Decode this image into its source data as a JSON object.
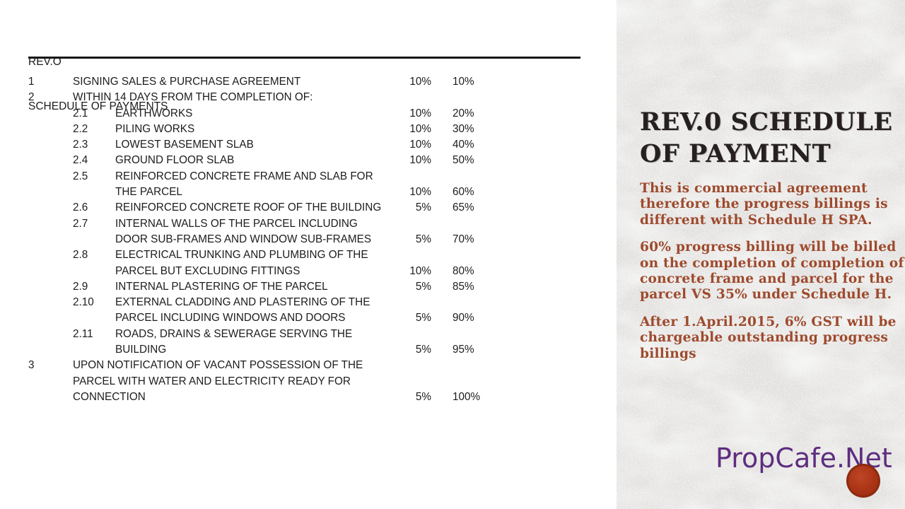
{
  "document": {
    "header": {
      "line1": "REV.O",
      "line2": "SCHEDULE OF PAYMENTS"
    },
    "rows": [
      {
        "no": "1",
        "level": "main",
        "lines": [
          "SIGNING SALES & PURCHASE AGREEMENT"
        ],
        "progress": "10%",
        "cumulative": "10%"
      },
      {
        "no": "2",
        "level": "main",
        "lines": [
          "WITHIN 14 DAYS FROM THE COMPLETION OF:"
        ],
        "progress": "",
        "cumulative": ""
      },
      {
        "no": "2.1",
        "level": "sub",
        "lines": [
          "EARTHWORKS"
        ],
        "progress": "10%",
        "cumulative": "20%"
      },
      {
        "no": "2.2",
        "level": "sub",
        "lines": [
          "PILING WORKS"
        ],
        "progress": "10%",
        "cumulative": "30%"
      },
      {
        "no": "2.3",
        "level": "sub",
        "lines": [
          "LOWEST BASEMENT SLAB"
        ],
        "progress": "10%",
        "cumulative": "40%"
      },
      {
        "no": "2.4",
        "level": "sub",
        "lines": [
          "GROUND FLOOR SLAB"
        ],
        "progress": "10%",
        "cumulative": "50%"
      },
      {
        "no": "2.5",
        "level": "sub",
        "lines": [
          "REINFORCED CONCRETE FRAME AND SLAB FOR",
          "THE PARCEL"
        ],
        "progress": "10%",
        "cumulative": "60%"
      },
      {
        "no": "2.6",
        "level": "sub",
        "lines": [
          "REINFORCED CONCRETE ROOF OF THE BUILDING"
        ],
        "progress": "5%",
        "cumulative": "65%"
      },
      {
        "no": "2.7",
        "level": "sub",
        "lines": [
          "INTERNAL WALLS OF THE PARCEL INCLUDING",
          "DOOR SUB-FRAMES AND WINDOW SUB-FRAMES"
        ],
        "progress": "5%",
        "cumulative": "70%"
      },
      {
        "no": "2.8",
        "level": "sub",
        "lines": [
          "ELECTRICAL TRUNKING AND PLUMBING OF THE",
          "PARCEL BUT EXCLUDING FITTINGS"
        ],
        "progress": "10%",
        "cumulative": "80%"
      },
      {
        "no": "2.9",
        "level": "sub",
        "lines": [
          "INTERNAL PLASTERING OF THE PARCEL"
        ],
        "progress": "5%",
        "cumulative": "85%"
      },
      {
        "no": "2.10",
        "level": "sub",
        "lines": [
          "EXTERNAL CLADDING AND PLASTERING OF THE",
          "PARCEL INCLUDING WINDOWS AND DOORS"
        ],
        "progress": "5%",
        "cumulative": "90%"
      },
      {
        "no": "2.11",
        "level": "sub",
        "lines": [
          "ROADS, DRAINS & SEWERAGE SERVING THE",
          "BUILDING"
        ],
        "progress": "5%",
        "cumulative": "95%"
      },
      {
        "no": "3",
        "level": "main",
        "lines": [
          "UPON NOTIFICATION OF VACANT POSSESSION OF THE",
          "PARCEL WITH WATER AND ELECTRICITY READY FOR",
          "CONNECTION"
        ],
        "progress": "5%",
        "cumulative": "100%"
      }
    ]
  },
  "sidebar": {
    "title_lines": [
      "REV.0 SCHEDULE",
      "OF PAYMENT"
    ],
    "paragraphs": [
      [
        "This is commercial agreement",
        "therefore the progress billings is",
        "different with Schedule H SPA."
      ],
      [
        "60% progress billing will be billed",
        "on the completion of completion of",
        "concrete frame and parcel for the",
        "parcel VS 35% under Schedule H."
      ],
      [
        "After 1.April.2015, 6% GST will be",
        "chargeable outstanding progress",
        "billings"
      ]
    ],
    "brand": "PropCafe.Net"
  },
  "colors": {
    "table_text": "#1c1c1c",
    "sidebar_bg": "#e2e1df",
    "title_text": "#262020",
    "note_text": "#9e4a2d",
    "brand_purple": "#5e2d80",
    "badge_red": "#ab3415"
  }
}
